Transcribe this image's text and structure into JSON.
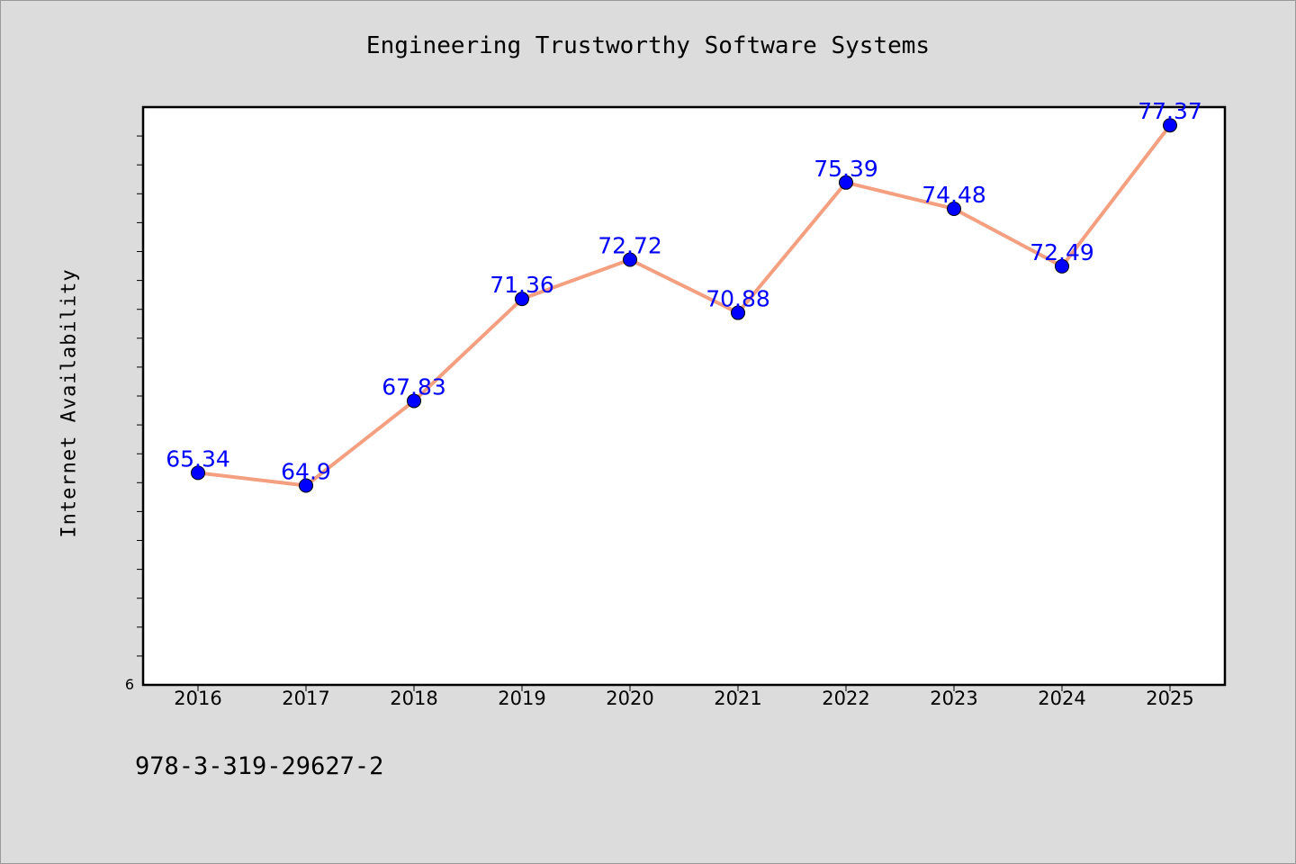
{
  "page": {
    "footer_text": "978-3-319-29627-2"
  },
  "colors": {
    "background": "#dcdcdc",
    "plot_background": "#ffffff",
    "line": "#f4a080",
    "marker": "#0000ff",
    "data_label": "#0000ff"
  },
  "chart_data": {
    "type": "line",
    "title": "Engineering Trustworthy Software Systems",
    "xlabel": "",
    "ylabel": "Internet Availability",
    "categories": [
      "2016",
      "2017",
      "2018",
      "2019",
      "2020",
      "2021",
      "2022",
      "2023",
      "2024",
      "2025"
    ],
    "series": [
      {
        "values": [
          65.34,
          64.9,
          67.83,
          71.36,
          72.72,
          70.88,
          75.39,
          74.48,
          72.49,
          77.37
        ],
        "labels": [
          "65.34",
          "64.9",
          "67.83",
          "71.36",
          "72.72",
          "70.88",
          "75.39",
          "74.48",
          "72.49",
          "77.37"
        ]
      }
    ],
    "ylim": [
      58,
      78
    ],
    "yticks_labeled": [
      "6"
    ],
    "grid": false,
    "legend": "none"
  }
}
